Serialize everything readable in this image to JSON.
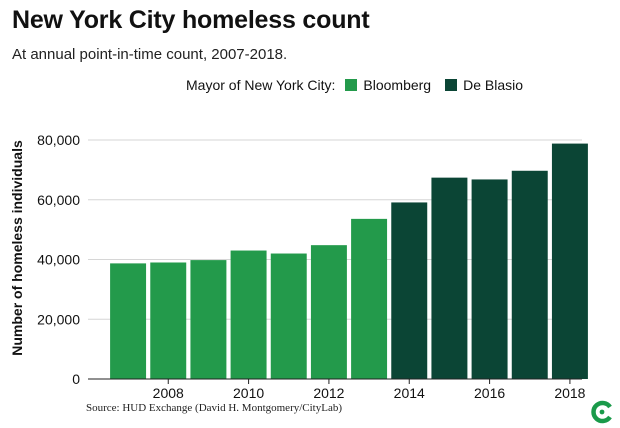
{
  "chart_data": {
    "type": "bar",
    "title": "New York City homeless count",
    "subtitle": "At annual point-in-time count, 2007-2018.",
    "ylabel": "Number of homeless individuals",
    "xlabel": "",
    "ylim": [
      0,
      80000
    ],
    "yticks": [
      0,
      20000,
      40000,
      60000,
      80000
    ],
    "ytick_labels": [
      "0",
      "20,000",
      "40,000",
      "60,000",
      "80,000"
    ],
    "xtick_labels": [
      "2008",
      "2010",
      "2012",
      "2014",
      "2016",
      "2018"
    ],
    "legend": {
      "title": "Mayor of New York City:",
      "placement": "top",
      "entries": [
        {
          "name": "Bloomberg",
          "color": "#239a4b"
        },
        {
          "name": "De Blasio",
          "color": "#0b4535"
        }
      ]
    },
    "categories": [
      2007,
      2008,
      2009,
      2010,
      2011,
      2012,
      2013,
      2014,
      2015,
      2016,
      2017,
      2018
    ],
    "values": [
      38700,
      39000,
      39800,
      43000,
      42000,
      44800,
      53600,
      59100,
      67400,
      66800,
      69700,
      78800
    ],
    "mayor": [
      "Bloomberg",
      "Bloomberg",
      "Bloomberg",
      "Bloomberg",
      "Bloomberg",
      "Bloomberg",
      "Bloomberg",
      "De Blasio",
      "De Blasio",
      "De Blasio",
      "De Blasio",
      "De Blasio"
    ],
    "source": "Source: HUD Exchange (David H. Montgomery/CityLab)"
  },
  "colors": {
    "bloomberg": "#239a4b",
    "deblasio": "#0b4535",
    "grid": "#d6d6d6",
    "logo": "#1a9a4a"
  },
  "logo_icon": "citylab-logo-icon"
}
